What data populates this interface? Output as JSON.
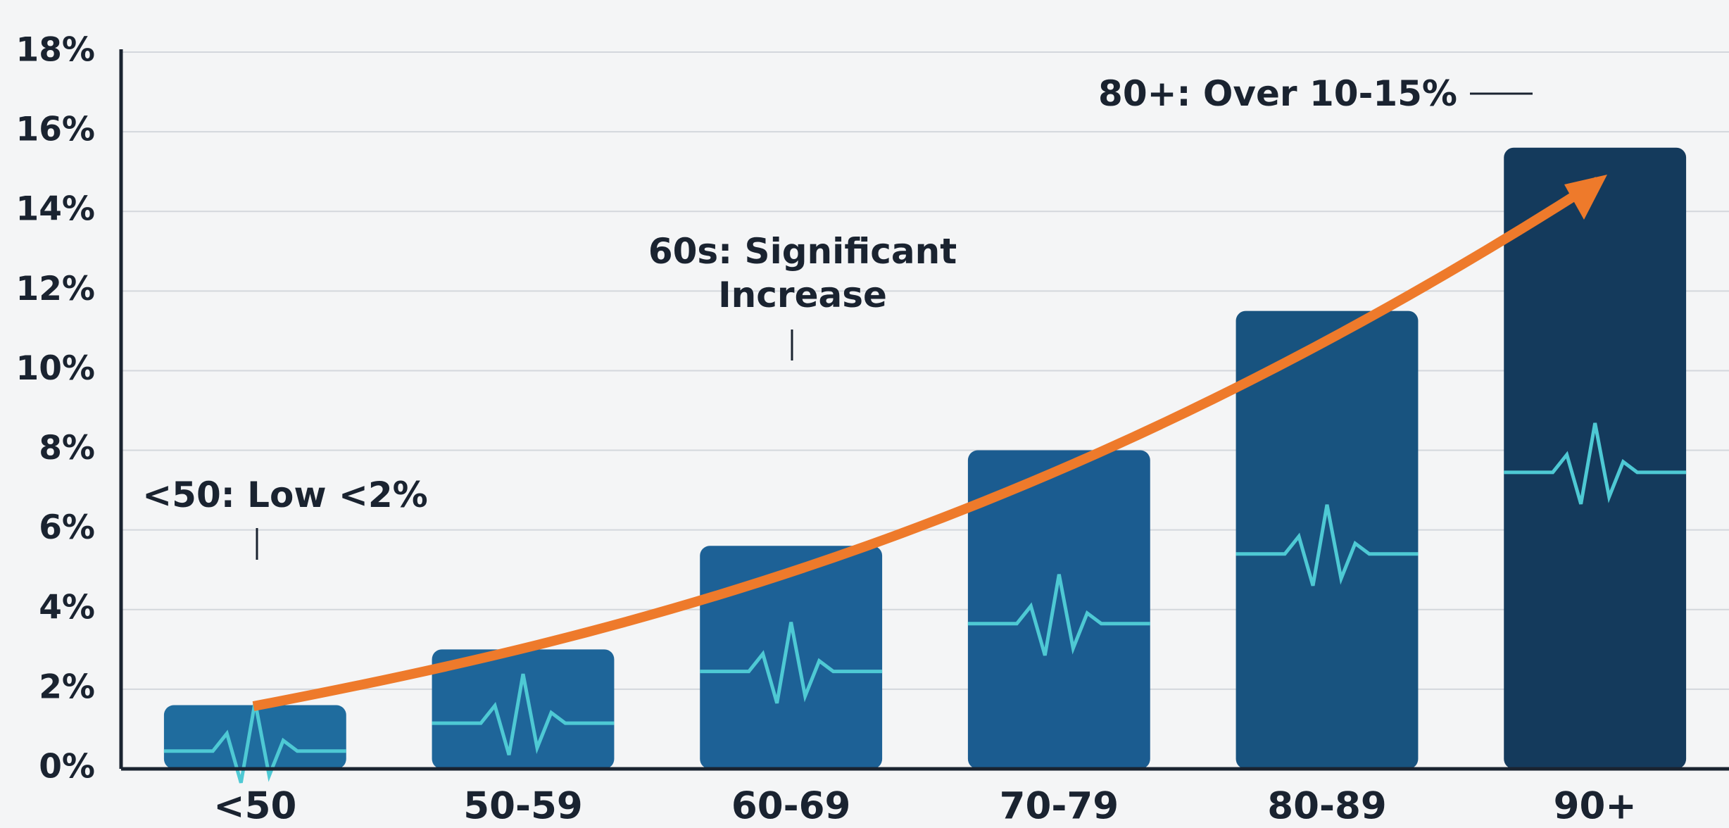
{
  "chart_data": {
    "type": "bar",
    "categories": [
      "<50",
      "50-59",
      "60-69",
      "70-79",
      "80-89",
      "90+"
    ],
    "values": [
      1.6,
      3.0,
      5.6,
      8.0,
      11.5,
      15.6
    ],
    "colors": [
      "#1f6c9e",
      "#1e6599",
      "#1d6196",
      "#1b5c90",
      "#18537f",
      "#143a5c"
    ],
    "ylim": [
      0,
      18
    ],
    "yticks": [
      {
        "value": 0,
        "label": "0%"
      },
      {
        "value": 2,
        "label": "2%"
      },
      {
        "value": 4,
        "label": "4%"
      },
      {
        "value": 6,
        "label": "6%"
      },
      {
        "value": 8,
        "label": "8%"
      },
      {
        "value": 10,
        "label": "10%"
      },
      {
        "value": 12,
        "label": "12%"
      },
      {
        "value": 14,
        "label": "14%"
      },
      {
        "value": 16,
        "label": "16%"
      },
      {
        "value": 18,
        "label": "18%"
      }
    ],
    "grid": true,
    "annotations": [
      "<50: Low <2%",
      "60s: Significant Increase",
      "80+: Over 10-15%"
    ]
  }
}
